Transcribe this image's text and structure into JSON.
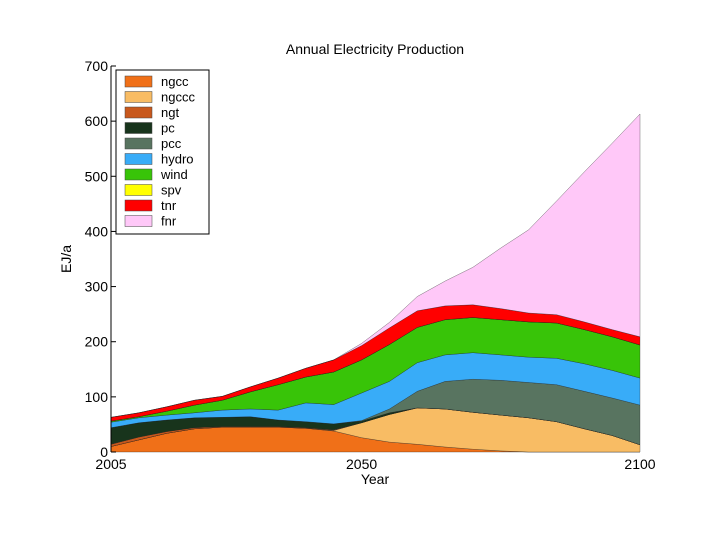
{
  "chart_data": {
    "type": "area",
    "stacked": true,
    "title": "Annual Electricity Production",
    "xlabel": "Year",
    "ylabel": "EJ/a",
    "xlim": [
      2005,
      2100
    ],
    "ylim": [
      0,
      700
    ],
    "xticks": [
      2005,
      2050,
      2100
    ],
    "yticks": [
      0,
      100,
      200,
      300,
      400,
      500,
      600,
      700
    ],
    "legend_position": "top-left",
    "grid": false,
    "x": [
      2005,
      2010,
      2015,
      2020,
      2025,
      2030,
      2035,
      2040,
      2045,
      2050,
      2055,
      2060,
      2065,
      2070,
      2075,
      2080,
      2085,
      2090,
      2095,
      2100
    ],
    "series": [
      {
        "name": "ngcc",
        "color": "#f07018",
        "values": [
          10,
          22,
          34,
          42,
          45,
          45,
          45,
          43,
          38,
          26,
          18,
          14,
          9,
          5,
          2,
          0,
          0,
          0,
          0,
          0
        ]
      },
      {
        "name": "ngccc",
        "color": "#f8bc64",
        "values": [
          0,
          0,
          0,
          0,
          0,
          0,
          0,
          0,
          1,
          27,
          50,
          66,
          69,
          67,
          65,
          62,
          55,
          42,
          30,
          13
        ]
      },
      {
        "name": "ngt",
        "color": "#c8581c",
        "values": [
          4,
          5,
          3,
          2,
          1,
          1,
          1,
          1,
          1,
          0,
          0,
          0,
          0,
          0,
          0,
          0,
          0,
          0,
          0,
          0
        ]
      },
      {
        "name": "pc",
        "color": "#18341c",
        "values": [
          30,
          26,
          21,
          18,
          17,
          18,
          12,
          11,
          11,
          3,
          3,
          0,
          0,
          0,
          0,
          0,
          0,
          0,
          0,
          0
        ]
      },
      {
        "name": "pcc",
        "color": "#587460",
        "values": [
          0,
          0,
          0,
          0,
          0,
          0,
          0,
          0,
          0,
          1,
          7,
          30,
          50,
          60,
          63,
          64,
          67,
          68,
          68,
          72
        ]
      },
      {
        "name": "hydro",
        "color": "#38acf8",
        "values": [
          10,
          9,
          9,
          9,
          13,
          14,
          18,
          34,
          35,
          50,
          50,
          52,
          48,
          48,
          46,
          46,
          48,
          50,
          50,
          49
        ]
      },
      {
        "name": "wind",
        "color": "#38c408",
        "values": [
          2,
          2,
          7,
          14,
          18,
          31,
          46,
          47,
          59,
          60,
          67,
          64,
          64,
          64,
          64,
          64,
          64,
          62,
          61,
          60
        ]
      },
      {
        "name": "spv",
        "color": "#ffff00",
        "values": [
          0,
          0,
          0,
          0,
          0,
          0,
          0,
          0,
          0,
          0,
          0,
          0,
          0,
          0,
          0,
          0,
          0,
          0,
          0,
          0
        ]
      },
      {
        "name": "tnr",
        "color": "#ff0000",
        "values": [
          7,
          7,
          8,
          9,
          7,
          9,
          12,
          16,
          22,
          26,
          30,
          30,
          25,
          23,
          20,
          16,
          15,
          14,
          13,
          15
        ]
      },
      {
        "name": "fnr",
        "color": "#ffc8f8",
        "values": [
          0,
          0,
          0,
          0,
          0,
          0,
          0,
          0,
          0,
          4,
          10,
          26,
          45,
          68,
          110,
          151,
          206,
          272,
          338,
          404
        ]
      }
    ]
  }
}
